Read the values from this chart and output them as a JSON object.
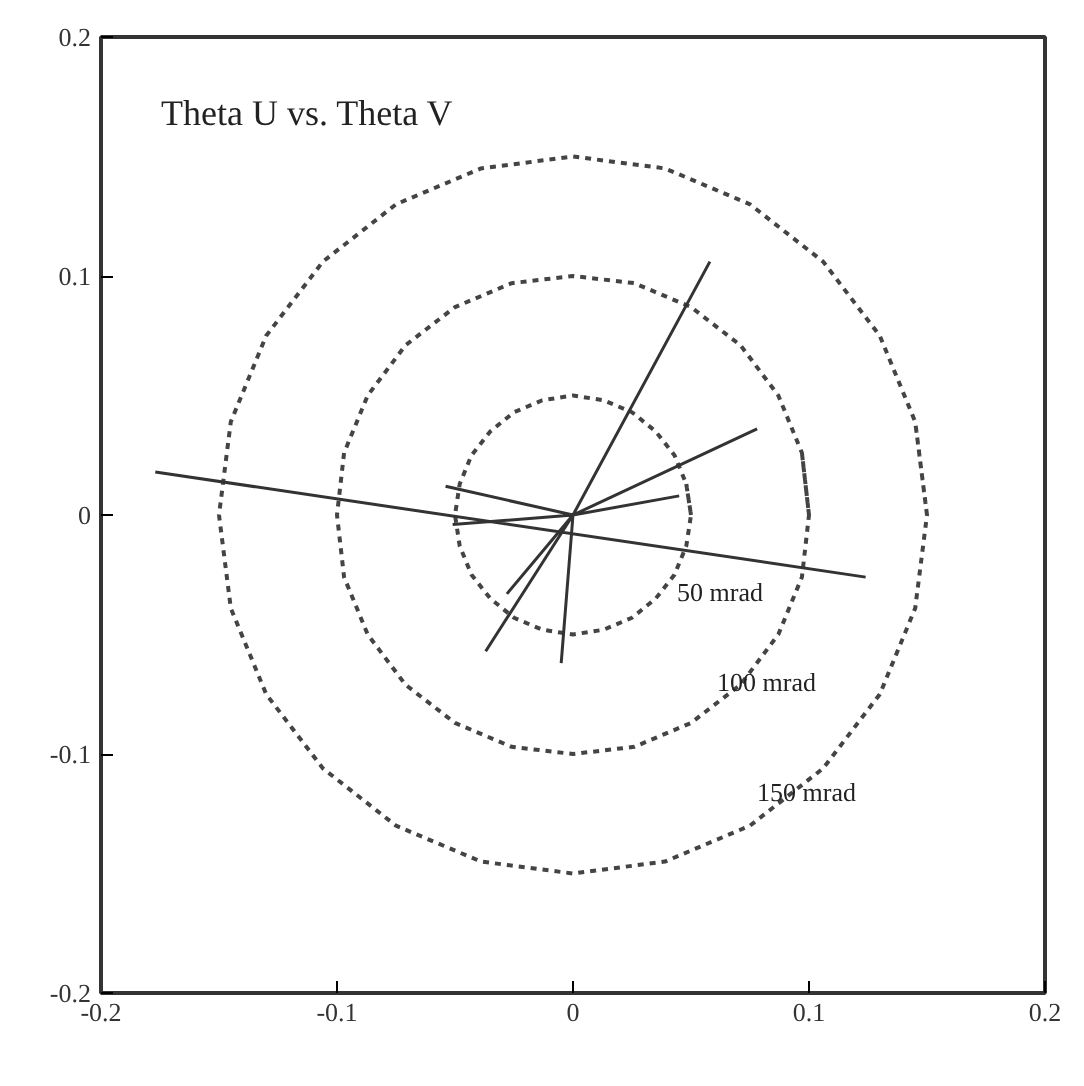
{
  "chart_data": {
    "type": "line",
    "title": "Theta U vs. Theta V",
    "xlim": [
      -0.2,
      0.2
    ],
    "ylim": [
      -0.2,
      0.2
    ],
    "xticks": [
      {
        "value": -0.2,
        "label": "-0.2"
      },
      {
        "value": -0.1,
        "label": "-0.1"
      },
      0,
      {
        "value": 0.1,
        "label": "0.1"
      },
      {
        "value": 0.2,
        "label": "0.2"
      }
    ],
    "yticks": [
      {
        "value": -0.2,
        "label": "-0.2"
      },
      {
        "value": -0.1,
        "label": "-0.1"
      },
      0,
      {
        "value": 0.1,
        "label": "0.1"
      },
      {
        "value": 0.2,
        "label": "0.2"
      }
    ],
    "grid": false,
    "marker": "none",
    "series": [
      {
        "color": "#444444",
        "line_style": "dotted",
        "x": [
          0.05,
          0.048,
          0.043,
          0.035,
          0.025,
          0.013,
          0,
          -0.013,
          -0.025,
          -0.035,
          -0.043,
          -0.048,
          -0.05,
          -0.048,
          -0.043,
          -0.035,
          -0.025,
          -0.013,
          0,
          0.013,
          0.025,
          0.035,
          0.043,
          0.048,
          0.05,
          0.048
        ],
        "values": [
          0,
          0.013,
          0.025,
          0.035,
          0.043,
          0.048,
          0.05,
          0.048,
          0.043,
          0.035,
          0.025,
          0.013,
          0,
          -0.013,
          -0.025,
          -0.035,
          -0.043,
          -0.048,
          -0.05,
          -0.048,
          -0.043,
          -0.035,
          -0.025,
          -0.013,
          0,
          0.013
        ]
      },
      {
        "color": "#444444",
        "line_style": "dotted",
        "x": [
          0.1,
          0.097,
          0.087,
          0.071,
          0.05,
          0.026,
          0,
          -0.026,
          -0.05,
          -0.071,
          -0.087,
          -0.097,
          -0.1,
          -0.097,
          -0.087,
          -0.071,
          -0.05,
          -0.026,
          0,
          0.026,
          0.05,
          0.071,
          0.087,
          0.097,
          0.1,
          0.097
        ],
        "values": [
          0,
          0.026,
          0.05,
          0.071,
          0.087,
          0.097,
          0.1,
          0.097,
          0.087,
          0.071,
          0.05,
          0.026,
          0,
          -0.026,
          -0.05,
          -0.071,
          -0.087,
          -0.097,
          -0.1,
          -0.097,
          -0.087,
          -0.071,
          -0.05,
          -0.026,
          0,
          0.026
        ]
      },
      {
        "color": "#444444",
        "line_style": "dotted",
        "x": [
          0.15,
          0.145,
          0.13,
          0.106,
          0.075,
          0.039,
          0,
          -0.039,
          -0.075,
          -0.106,
          -0.13,
          -0.145,
          -0.15,
          -0.145,
          -0.13,
          -0.106,
          -0.075,
          -0.039,
          0,
          0.039,
          0.075,
          0.106,
          0.13,
          0.145,
          0.15,
          0.145
        ],
        "values": [
          0,
          0.039,
          0.075,
          0.106,
          0.13,
          0.145,
          0.15,
          0.145,
          0.13,
          0.106,
          0.075,
          0.039,
          0,
          -0.039,
          -0.075,
          -0.106,
          -0.13,
          -0.145,
          -0.15,
          -0.145,
          -0.13,
          -0.106,
          -0.075,
          -0.039,
          0,
          0.039
        ]
      },
      {
        "color": "#333333",
        "line_style": "solid",
        "x": [
          -0.177,
          0.124,
          null,
          0,
          0.058,
          null,
          0,
          0.078,
          null,
          0,
          0.045,
          null,
          0,
          -0.054,
          null,
          0,
          -0.051,
          null,
          0,
          -0.037,
          null,
          0,
          -0.005,
          null,
          0,
          -0.028
        ],
        "values": [
          0.018,
          -0.026,
          null,
          0,
          0.106,
          null,
          0,
          0.036,
          null,
          0,
          0.008,
          null,
          0,
          0.012,
          null,
          0,
          -0.004,
          null,
          0,
          -0.057,
          null,
          0,
          -0.062,
          null,
          0,
          -0.033
        ]
      }
    ],
    "annotations": [
      "50 mrad",
      "100 mrad",
      "150 mrad"
    ]
  }
}
